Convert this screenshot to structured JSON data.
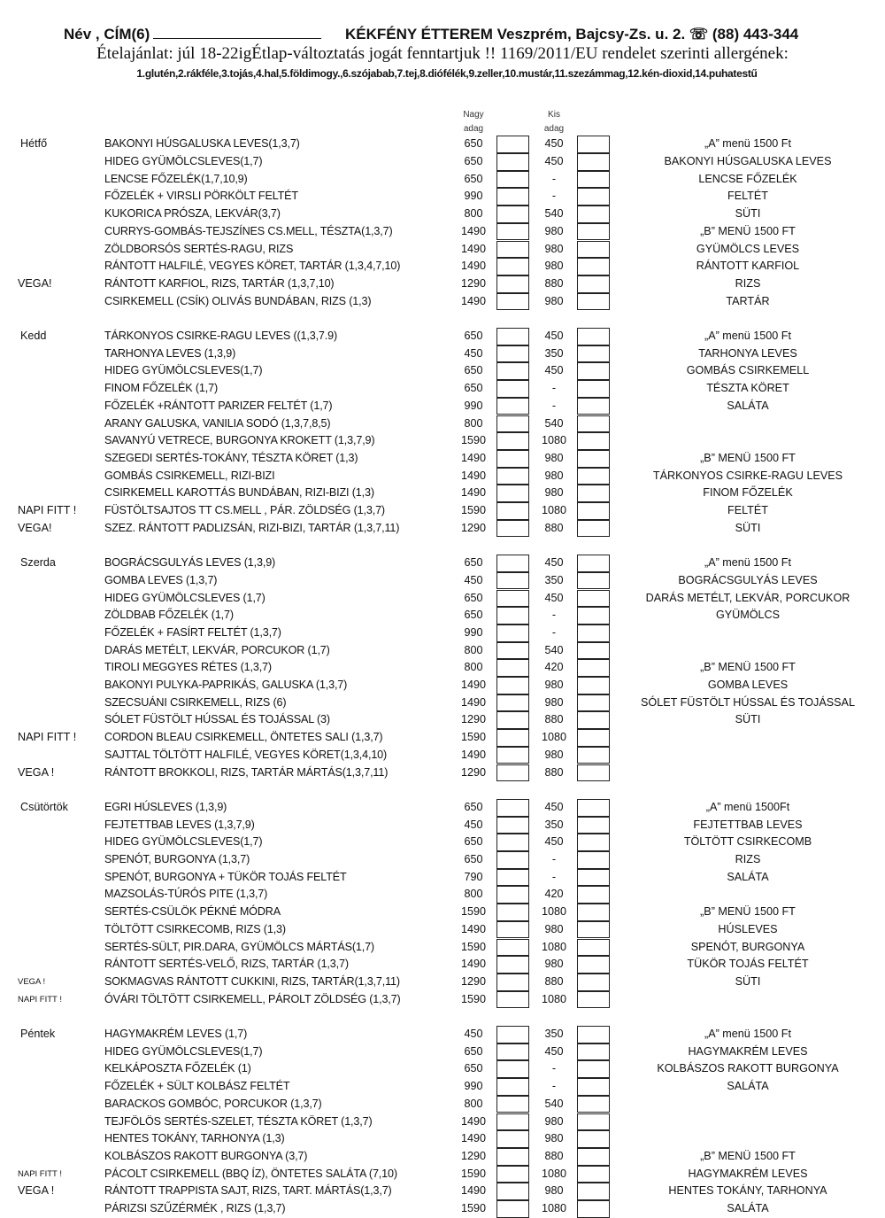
{
  "header": {
    "name_label": "Név , CÍM(6)",
    "restaurant": "KÉKFÉNY ÉTTEREM Veszprém, Bajcsy-Zs. u. 2. ☏ (88) 443-344",
    "subtitle": "Ételajánlat: júl 18-22igÉtlap-változtatás jogát fenntartjuk !! 1169/2011/EU rendelet szerinti allergének:",
    "allergens": "1.glutén,2.rákféle,3.tojás,4.hal,5.földimogy.,6.szójabab,7.tej,8.diófélék,9.zeller,10.mustár,11.szezámmag,12.kén-dioxid,14.puhatestű"
  },
  "columns": {
    "nagy_1": "Nagy",
    "nagy_2": "adag",
    "kis_1": "Kis",
    "kis_2": "adag"
  },
  "days": [
    {
      "name": "Hétfő",
      "items": [
        {
          "tag": "",
          "dish": "BAKONYI HÚSGALUSKA LEVES(1,3,7)",
          "nagy": "650",
          "kis": "450"
        },
        {
          "tag": "",
          "dish": "HIDEG GYÜMÖLCSLEVES(1,7)",
          "nagy": "650",
          "kis": "450"
        },
        {
          "tag": "",
          "dish": "LENCSE FŐZELÉK(1,7,10,9)",
          "nagy": "650",
          "kis": "-"
        },
        {
          "tag": "",
          "dish": "FŐZELÉK + VIRSLI PÖRKÖLT  FELTÉT",
          "nagy": "990",
          "kis": "-"
        },
        {
          "tag": "",
          "dish": "KUKORICA PRÓSZA, LEKVÁR(3,7)",
          "nagy": "800",
          "kis": "540"
        },
        {
          "tag": "",
          "dish": "CURRYS-GOMBÁS-TEJSZÍNES CS.MELL,  TÉSZTA(1,3,7)",
          "nagy": "1490",
          "kis": "980"
        },
        {
          "tag": "",
          "dish": "ZÖLDBORSÓS SERTÉS-RAGU, RIZS",
          "nagy": "1490",
          "kis": "980"
        },
        {
          "tag": "",
          "dish": "RÁNTOTT HALFILÉ, VEGYES KÖRET, TARTÁR (1,3,4,7,10)",
          "nagy": "1490",
          "kis": "980"
        },
        {
          "tag": "VEGA!",
          "dish": "RÁNTOTT KARFIOL, RIZS, TARTÁR (1,3,7,10)",
          "nagy": "1290",
          "kis": "880"
        },
        {
          "tag": "",
          "dish": "CSIRKEMELL (CSÍK) OLIVÁS BUNDÁBAN, RIZS (1,3)",
          "nagy": "1490",
          "kis": "980"
        }
      ],
      "menu": [
        "„A” menü 1500 Ft",
        "BAKONYI HÚSGALUSKA LEVES",
        "LENCSE   FŐZELÉK",
        "FELTÉT",
        "SÜTI",
        "„B” MENÜ 1500 FT",
        "GYÜMÖLCS LEVES",
        "RÁNTOTT KARFIOL",
        "RIZS",
        "TARTÁR"
      ]
    },
    {
      "name": "Kedd",
      "items": [
        {
          "tag": "",
          "dish": "TÁRKONYOS  CSIRKE-RAGU LEVES ((1,3,7.9)",
          "nagy": "650",
          "kis": "450"
        },
        {
          "tag": "",
          "dish": "TARHONYA LEVES (1,3,9)",
          "nagy": "450",
          "kis": "350"
        },
        {
          "tag": "",
          "dish": "HIDEG GYÜMÖLCSLEVES(1,7)",
          "nagy": "650",
          "kis": "450"
        },
        {
          "tag": "",
          "dish": "FINOM    FŐZELÉK (1,7)",
          "nagy": "650",
          "kis": "-"
        },
        {
          "tag": "",
          "dish": "FŐZELÉK +RÁNTOTT PARIZER  FELTÉT (1,7)",
          "nagy": "990",
          "kis": "-"
        },
        {
          "tag": "",
          "dish": "ARANY GALUSKA, VANILIA SODÓ (1,3,7,8,5)",
          "nagy": "800",
          "kis": "540"
        },
        {
          "tag": "",
          "dish": "SAVANYÚ VETRECE, BURGONYA KROKETT (1,3,7,9)",
          "nagy": "1590",
          "kis": "1080"
        },
        {
          "tag": "",
          "dish": "SZEGEDI SERTÉS-TOKÁNY, TÉSZTA KÖRET (1,3)",
          "nagy": "1490",
          "kis": "980"
        },
        {
          "tag": "",
          "dish": "GOMBÁS CSIRKEMELL, RIZI-BIZI",
          "nagy": "1490",
          "kis": "980"
        },
        {
          "tag": "",
          "dish": "CSIRKEMELL  KAROTTÁS BUNDÁBAN, RIZI-BIZI (1,3)",
          "nagy": "1490",
          "kis": "980"
        },
        {
          "tag": "NAPI FITT !",
          "dish": "FÜSTÖLTSAJTOS TT CS.MELL , PÁR. ZÖLDSÉG (1,3,7)",
          "nagy": "1590",
          "kis": "1080"
        },
        {
          "tag": "VEGA!",
          "dish": "SZEZ. RÁNTOTT PADLIZSÁN, RIZI-BIZI, TARTÁR (1,3,7,11)",
          "nagy": "1290",
          "kis": "880"
        }
      ],
      "menu": [
        "„A” menü 1500 Ft",
        "TARHONYA  LEVES",
        "GOMBÁS CSIRKEMELL",
        "TÉSZTA KÖRET",
        "SALÁTA",
        "",
        "",
        "„B” MENÜ 1500 FT",
        "TÁRKONYOS CSIRKE-RAGU  LEVES",
        "FINOM FŐZELÉK",
        "FELTÉT",
        "SÜTI"
      ]
    },
    {
      "name": "Szerda",
      "items": [
        {
          "tag": "",
          "dish": "BOGRÁCSGULYÁS LEVES (1,3,9)",
          "nagy": "650",
          "kis": "450"
        },
        {
          "tag": "",
          "dish": "GOMBA LEVES (1,3,7)",
          "nagy": "450",
          "kis": "350"
        },
        {
          "tag": "",
          "dish": "HIDEG GYÜMÖLCSLEVES (1,7)",
          "nagy": "650",
          "kis": "450"
        },
        {
          "tag": "",
          "dish": "ZÖLDBAB FŐZELÉK (1,7)",
          "nagy": "650",
          "kis": "-"
        },
        {
          "tag": "",
          "dish": "FŐZELÉK + FASÍRT FELTÉT (1,3,7)",
          "nagy": "990",
          "kis": "-"
        },
        {
          "tag": "",
          "dish": "DARÁS METÉLT, LEKVÁR, PORCUKOR  (1,7)",
          "nagy": "800",
          "kis": "540"
        },
        {
          "tag": "",
          "dish": "TIROLI MEGGYES RÉTES (1,3,7)",
          "nagy": "800",
          "kis": "420"
        },
        {
          "tag": "",
          "dish": "BAKONYI PULYKA-PAPRIKÁS, GALUSKA (1,3,7)",
          "nagy": "1490",
          "kis": "980"
        },
        {
          "tag": "",
          "dish": "SZECSUÁNI CSIRKEMELL, RIZS (6)",
          "nagy": "1490",
          "kis": "980"
        },
        {
          "tag": "",
          "dish": "SÓLET FÜSTÖLT HÚSSAL ÉS TOJÁSSAL (3)",
          "nagy": "1290",
          "kis": "880"
        },
        {
          "tag": "NAPI FITT !",
          "dish": "CORDON BLEAU CSIRKEMELL, ÖNTETES SALI (1,3,7)",
          "nagy": "1590",
          "kis": "1080"
        },
        {
          "tag": "",
          "dish": "SAJTTAL TÖLTÖTT HALFILÉ, VEGYES KÖRET(1,3,4,10)",
          "nagy": "1490",
          "kis": "980"
        },
        {
          "tag": "VEGA !",
          "dish": "RÁNTOTT BROKKOLI, RIZS, TARTÁR MÁRTÁS(1,3,7,11)",
          "nagy": "1290",
          "kis": "880"
        }
      ],
      "menu": [
        "„A” menü 1500 Ft",
        "BOGRÁCSGULYÁS LEVES",
        "DARÁS METÉLT, LEKVÁR, PORCUKOR",
        "GYÜMÖLCS",
        "",
        "",
        "„B” MENÜ 1500 FT",
        "GOMBA LEVES",
        "SÓLET FÜSTÖLT HÚSSAL ÉS TOJÁSSAL",
        "SÜTI"
      ]
    },
    {
      "name": "Csütörtök",
      "items": [
        {
          "tag": "",
          "dish": "EGRI HÚSLEVES (1,3,9)",
          "nagy": "650",
          "kis": "450"
        },
        {
          "tag": "",
          "dish": "FEJTETTBAB LEVES (1,3,7,9)",
          "nagy": "450",
          "kis": "350"
        },
        {
          "tag": "",
          "dish": "HIDEG GYÜMÖLCSLEVES(1,7)",
          "nagy": "650",
          "kis": "450"
        },
        {
          "tag": "",
          "dish": "SPENÓT, BURGONYA (1,3,7)",
          "nagy": "650",
          "kis": "-"
        },
        {
          "tag": "",
          "dish": "SPENÓT, BURGONYA + TÜKÖR TOJÁS FELTÉT",
          "nagy": "790",
          "kis": "-"
        },
        {
          "tag": "",
          "dish": "MAZSOLÁS-TÚRÓS PITE (1,3,7)",
          "nagy": "800",
          "kis": "420"
        },
        {
          "tag": "",
          "dish": "SERTÉS-CSÜLÖK PÉKNÉ MÓDRA",
          "nagy": "1590",
          "kis": "1080"
        },
        {
          "tag": "",
          "dish": "TÖLTÖTT CSIRKECOMB, RIZS (1,3)",
          "nagy": "1490",
          "kis": "980"
        },
        {
          "tag": "",
          "dish": "SERTÉS-SÜLT, PIR.DARA, GYÜMÖLCS MÁRTÁS(1,7)",
          "nagy": "1590",
          "kis": "1080"
        },
        {
          "tag": "",
          "dish": "RÁNTOTT SERTÉS-VELŐ, RIZS, TARTÁR (1,3,7)",
          "nagy": "1490",
          "kis": "980"
        },
        {
          "tag": "VEGA !",
          "small_tag": true,
          "dish": "SOKMAGVAS RÁNTOTT CUKKINI, RIZS, TARTÁR(1,3,7,11)",
          "nagy": "1290",
          "kis": "880"
        },
        {
          "tag": "NAPI FITT !",
          "small_tag": true,
          "dish": "ÓVÁRI TÖLTÖTT CSIRKEMELL, PÁROLT ZÖLDSÉG (1,3,7)",
          "nagy": "1590",
          "kis": "1080"
        }
      ],
      "menu": [
        "„A” menü 1500Ft",
        "FEJTETTBAB LEVES",
        "TÖLTÖTT CSIRKECOMB",
        "RIZS",
        "SALÁTA",
        "",
        "„B” MENÜ 1500 FT",
        "HÚSLEVES",
        "SPENÓT, BURGONYA",
        "TÜKÖR TOJÁS FELTÉT",
        "SÜTI"
      ]
    },
    {
      "name": "Péntek",
      "items": [
        {
          "tag": "",
          "dish": "HAGYMAKRÉM LEVES (1,7)",
          "nagy": "450",
          "kis": "350"
        },
        {
          "tag": "",
          "dish": "HIDEG GYÜMÖLCSLEVES(1,7)",
          "nagy": "650",
          "kis": "450"
        },
        {
          "tag": "",
          "dish": "KELKÁPOSZTA  FŐZELÉK (1)",
          "nagy": "650",
          "kis": "-"
        },
        {
          "tag": "",
          "dish": "FŐZELÉK + SÜLT KOLBÁSZ  FELTÉT",
          "nagy": "990",
          "kis": "-"
        },
        {
          "tag": "",
          "dish": "BARACKOS GOMBÓC, PORCUKOR (1,3,7)",
          "nagy": "800",
          "kis": "540"
        },
        {
          "tag": "",
          "dish": "TEJFÖLÖS SERTÉS-SZELET, TÉSZTA KÖRET (1,3,7)",
          "nagy": "1490",
          "kis": "980"
        },
        {
          "tag": "",
          "dish": "HENTES TOKÁNY, TARHONYA (1,3)",
          "nagy": "1490",
          "kis": "980"
        },
        {
          "tag": "",
          "dish": "KOLBÁSZOS RAKOTT BURGONYA (3,7)",
          "nagy": "1290",
          "kis": "880"
        },
        {
          "tag": "NAPI FITT !",
          "small_tag": true,
          "dish": "PÁCOLT CSIRKEMELL (BBQ ÍZ), ÖNTETES SALÁTA (7,10)",
          "nagy": "1590",
          "kis": "1080"
        },
        {
          "tag": "VEGA !",
          "dish": "RÁNTOTT TRAPPISTA SAJT, RIZS, TART. MÁRTÁS(1,3,7)",
          "nagy": "1490",
          "kis": "980"
        },
        {
          "tag": "",
          "dish": "PÁRIZSI SZŰZÉRMÉK ,  RIZS (1,3,7)",
          "nagy": "1590",
          "kis": "1080"
        }
      ],
      "menu": [
        "„A” menü 1500 Ft",
        "HAGYMAKRÉM LEVES",
        "KOLBÁSZOS RAKOTT BURGONYA",
        "SALÁTA",
        "",
        "",
        "",
        "„B” MENÜ 1500 FT",
        "HAGYMAKRÉM LEVES",
        "HENTES TOKÁNY, TARHONYA",
        "SALÁTA"
      ]
    }
  ]
}
